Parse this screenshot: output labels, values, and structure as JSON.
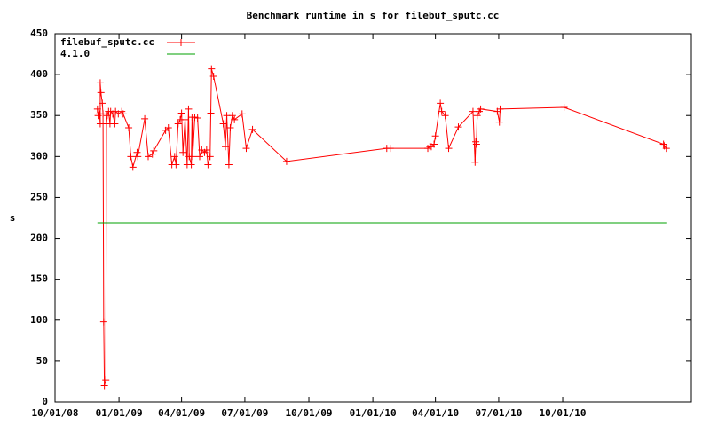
{
  "chart_data": {
    "type": "line",
    "title": "Benchmark runtime in s for filebuf_sputc.cc",
    "y_label": "s",
    "xlim": [
      "2008-10-01",
      "2011-04-04"
    ],
    "xticks": [
      {
        "value": "2008-10-01",
        "label": "10/01/08"
      },
      {
        "value": "2009-01-01",
        "label": "01/01/09"
      },
      {
        "value": "2009-04-01",
        "label": "04/01/09"
      },
      {
        "value": "2009-07-01",
        "label": "07/01/09"
      },
      {
        "value": "2009-10-01",
        "label": "10/01/09"
      },
      {
        "value": "2010-01-01",
        "label": "01/01/10"
      },
      {
        "value": "2010-04-01",
        "label": "04/01/10"
      },
      {
        "value": "2010-07-01",
        "label": "07/01/10"
      },
      {
        "value": "2010-10-01",
        "label": "10/01/10"
      }
    ],
    "ylim": [
      0,
      450
    ],
    "yticks": [
      0,
      50,
      100,
      150,
      200,
      250,
      300,
      350,
      400,
      450
    ],
    "grid": false,
    "legend": "top-left",
    "series": [
      {
        "name": "filebuf_sputc.cc",
        "color": "#ff0000",
        "markers": true,
        "x": [
          "2008-12-01",
          "2008-12-02",
          "2008-12-04",
          "2008-12-05",
          "2008-12-05",
          "2008-12-06",
          "2008-12-08",
          "2008-12-09",
          "2008-12-10",
          "2008-12-11",
          "2008-12-13",
          "2008-12-14",
          "2008-12-15",
          "2008-12-17",
          "2008-12-19",
          "2008-12-20",
          "2008-12-23",
          "2008-12-26",
          "2008-12-27",
          "2008-12-31",
          "2009-01-05",
          "2009-01-07",
          "2009-01-15",
          "2009-01-18",
          "2009-01-21",
          "2009-01-27",
          "2009-01-28",
          "2009-02-07",
          "2009-02-12",
          "2009-02-18",
          "2009-02-20",
          "2009-03-09",
          "2009-03-13",
          "2009-03-18",
          "2009-03-22",
          "2009-03-24",
          "2009-03-27",
          "2009-03-30",
          "2009-04-01",
          "2009-04-03",
          "2009-04-06",
          "2009-04-09",
          "2009-04-11",
          "2009-04-12",
          "2009-04-15",
          "2009-04-16",
          "2009-04-17",
          "2009-04-20",
          "2009-04-24",
          "2009-04-27",
          "2009-04-30",
          "2009-05-04",
          "2009-05-07",
          "2009-05-09",
          "2009-05-12",
          "2009-05-13",
          "2009-05-14",
          "2009-05-17",
          "2009-05-31",
          "2009-06-03",
          "2009-06-05",
          "2009-06-08",
          "2009-06-10",
          "2009-06-13",
          "2009-06-16",
          "2009-06-27",
          "2009-07-03",
          "2009-07-12",
          "2009-08-30",
          "2010-01-21",
          "2010-01-26",
          "2010-03-21",
          "2010-03-24",
          "2010-03-26",
          "2010-03-30",
          "2010-04-01",
          "2010-04-08",
          "2010-04-10",
          "2010-04-15",
          "2010-04-20",
          "2010-05-04",
          "2010-05-25",
          "2010-05-28",
          "2010-05-29",
          "2010-05-30",
          "2010-05-31",
          "2010-06-03",
          "2010-06-05",
          "2010-06-29",
          "2010-07-02",
          "2010-07-03",
          "2010-10-03",
          "2011-02-23",
          "2011-02-24",
          "2011-02-27"
        ],
        "values": [
          358,
          350,
          352,
          340,
          390,
          378,
          365,
          352,
          98,
          20,
          27,
          340,
          350,
          355,
          340,
          355,
          352,
          340,
          355,
          352,
          355,
          352,
          335,
          300,
          287,
          305,
          300,
          346,
          300,
          303,
          307,
          332,
          335,
          290,
          300,
          290,
          340,
          345,
          353,
          305,
          345,
          290,
          358,
          300,
          290,
          348,
          300,
          348,
          347,
          300,
          308,
          305,
          308,
          290,
          300,
          353,
          407,
          398,
          340,
          312,
          350,
          290,
          335,
          350,
          345,
          352,
          310,
          333,
          294,
          310,
          310,
          310,
          312,
          312,
          315,
          325,
          365,
          355,
          350,
          310,
          336,
          355,
          293,
          318,
          315,
          350,
          355,
          358,
          355,
          342,
          358,
          360,
          315,
          313,
          310
        ]
      },
      {
        "name": "4.1.0",
        "color": "#00a000",
        "markers": false,
        "x": [
          "2008-12-01",
          "2011-02-27"
        ],
        "values": [
          219,
          219
        ]
      }
    ]
  }
}
